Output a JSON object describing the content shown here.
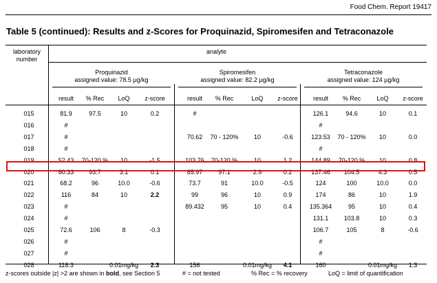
{
  "report": "Food Chem. Report 19417",
  "title": "Table 5 (continued):  Results and z-Scores for Proquinazid, Spiromesifen and Tetraconazole",
  "lab_header": "laboratory number",
  "analyte_header": "analyte",
  "compounds": [
    {
      "name": "Proquinazid",
      "assigned": "assigned value: 78.5 µg/kg"
    },
    {
      "name": "Spiromesifen",
      "assigned": "assigned value: 82.2 µg/kg"
    },
    {
      "name": "Tetraconazole",
      "assigned": "assigned value: 124 µg/kg"
    }
  ],
  "col_headers": [
    "result",
    "% Rec",
    "LoQ",
    "z-score"
  ],
  "highlighted_lab": "020",
  "rows": [
    {
      "lab": "015",
      "cells": [
        [
          "81.9",
          "97.5",
          "10",
          "0.2"
        ],
        [
          "#",
          "",
          "",
          ""
        ],
        [
          "126.1",
          "94.6",
          "10",
          "0.1"
        ]
      ]
    },
    {
      "lab": "016",
      "cells": [
        [
          "#",
          "",
          "",
          ""
        ],
        [
          "",
          "",
          "",
          ""
        ],
        [
          "#",
          "",
          "",
          ""
        ]
      ]
    },
    {
      "lab": "017",
      "cells": [
        [
          "#",
          "",
          "",
          ""
        ],
        [
          "70.62",
          "70 - 120%",
          "10",
          "-0.6"
        ],
        [
          "123.53",
          "70 - 120%",
          "10",
          "0.0"
        ]
      ]
    },
    {
      "lab": "018",
      "cells": [
        [
          "#",
          "",
          "",
          ""
        ],
        [
          "",
          "",
          "",
          ""
        ],
        [
          "#",
          "",
          "",
          ""
        ]
      ]
    },
    {
      "lab": "019",
      "cells": [
        [
          "52.43",
          "70-120 %",
          "10",
          "-1.5"
        ],
        [
          "103.76",
          "70-120 %",
          "10",
          "1.2"
        ],
        [
          "144.89",
          "70-120 %",
          "10",
          "0.8"
        ]
      ]
    },
    {
      "lab": "020",
      "cells": [
        [
          "80.33",
          "93.7",
          "3.1",
          "0.1"
        ],
        [
          "85.97",
          "97.1",
          "2.9",
          "0.2"
        ],
        [
          "137.46",
          "104.5",
          "4.3",
          "0.5"
        ]
      ]
    },
    {
      "lab": "021",
      "cells": [
        [
          "68.2",
          "96",
          "10.0",
          "-0.6"
        ],
        [
          "73.7",
          "91",
          "10.0",
          "-0.5"
        ],
        [
          "124",
          "100",
          "10.0",
          "0.0"
        ]
      ]
    },
    {
      "lab": "022",
      "cells": [
        [
          "116",
          "84",
          "10",
          "2.2"
        ],
        [
          "99",
          "96",
          "10",
          "0.9"
        ],
        [
          "174",
          "86",
          "10",
          "1.9"
        ]
      ]
    },
    {
      "lab": "023",
      "cells": [
        [
          "#",
          "",
          "",
          ""
        ],
        [
          "89.432",
          "95",
          "10",
          "0.4"
        ],
        [
          "135.364",
          "95",
          "10",
          "0.4"
        ]
      ]
    },
    {
      "lab": "024",
      "cells": [
        [
          "#",
          "",
          "",
          ""
        ],
        [
          "",
          "",
          "",
          ""
        ],
        [
          "131.1",
          "103.8",
          "10",
          "0.3"
        ]
      ]
    },
    {
      "lab": "025",
      "cells": [
        [
          "72.6",
          "106",
          "8",
          "-0.3"
        ],
        [
          "",
          "",
          "",
          ""
        ],
        [
          "106.7",
          "105",
          "8",
          "-0.6"
        ]
      ]
    },
    {
      "lab": "026",
      "cells": [
        [
          "#",
          "",
          "",
          ""
        ],
        [
          "",
          "",
          "",
          ""
        ],
        [
          "#",
          "",
          "",
          ""
        ]
      ]
    },
    {
      "lab": "027",
      "cells": [
        [
          "#",
          "",
          "",
          ""
        ],
        [
          "",
          "",
          "",
          ""
        ],
        [
          "#",
          "",
          "",
          ""
        ]
      ]
    },
    {
      "lab": "028",
      "cells": [
        [
          "118.3",
          "",
          "0.01mg/kg",
          "2.3"
        ],
        [
          "156",
          "",
          "0.01mg/kg",
          "4.1"
        ],
        [
          "160",
          "",
          "0.01mg/kg",
          "1.3"
        ]
      ]
    }
  ],
  "footer": {
    "zscore_pre": "z-scores outside |z| >2 are shown in ",
    "zscore_bold": "bold",
    "zscore_post": ", see Section 5",
    "not_tested": "# = not tested",
    "rec": "% Rec = % recovery",
    "loq": "LoQ = limit of quantification"
  }
}
